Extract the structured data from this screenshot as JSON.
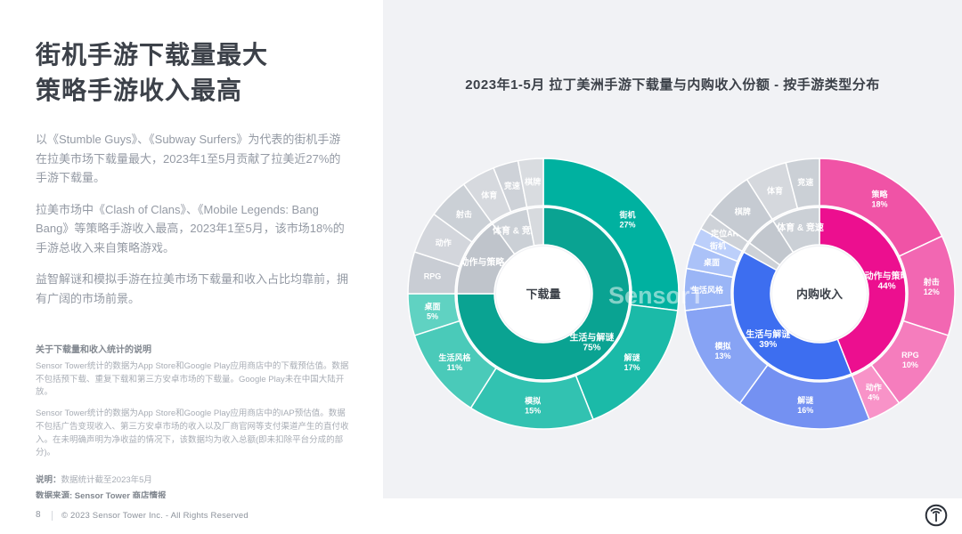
{
  "left_panel": {
    "title_line1": "街机手游下载量最大",
    "title_line2": "策略手游收入最高",
    "paragraphs": [
      "以《Stumble Guys》、《Subway Surfers》为代表的街机手游在拉美市场下载量最大，2023年1至5月贡献了拉美近27%的手游下载量。",
      "拉美市场中《Clash of Clans》、《Mobile Legends: Bang Bang》等策略手游收入最高，2023年1至5月，该市场18%的手游总收入来自策略游戏。",
      "益智解谜和模拟手游在拉美市场下载量和收入占比均靠前，拥有广阔的市场前景。"
    ],
    "notes_heading": "关于下载量和收入统计的说明",
    "notes": [
      "Sensor Tower统计的数据为App Store和Google Play应用商店中的下载预估值。数据不包括预下载、重复下载和第三方安卓市场的下载量。Google Play未在中国大陆开放。",
      "Sensor Tower统计的数据为App Store和Google Play应用商店中的IAP预估值。数据不包括广告变现收入、第三方安卓市场的收入以及厂商官网等支付渠道产生的直付收入。在未明确声明为净收益的情况下，该数据均为收入总额(即未扣除平台分成的部分)。"
    ],
    "note_label": "说明：",
    "note_value": "数据统计截至2023年5月",
    "source_label": "数据来源: Sensor Tower 商店情报"
  },
  "chart_panel": {
    "title": "2023年1-5月 拉丁美洲手游下载量与内购收入份额 - 按手游类型分布",
    "watermark": "SensorTower"
  },
  "footer": {
    "page_number": "8",
    "copyright": "© 2023 Sensor Tower Inc. - All Rights Reserved"
  },
  "chart_data": [
    {
      "type": "pie",
      "variant": "two-level-sunburst-donut",
      "name": "拉丁美洲手游下载量份额",
      "center_label": "下载量",
      "units": "% of downloads",
      "inner_ring": [
        {
          "label": "生活与解谜",
          "pct": "75%",
          "value": 75,
          "color": "#0aa392"
        },
        {
          "label": "动作与策略",
          "pct": "",
          "value": 15,
          "color": "#bfc4cb"
        },
        {
          "label": "体育 & 竞速",
          "pct": "",
          "value": 7,
          "color": "#cbd0d6"
        },
        {
          "label": "棋牌",
          "pct": "",
          "value": 3,
          "color": "#d7dade",
          "show_label": false
        }
      ],
      "outer_ring": [
        {
          "label": "街机",
          "pct": "27%",
          "value": 27,
          "color": "#00b1a0"
        },
        {
          "label": "解谜",
          "pct": "17%",
          "value": 17,
          "color": "#1bbaa8"
        },
        {
          "label": "模拟",
          "pct": "15%",
          "value": 15,
          "color": "#32c2b1"
        },
        {
          "label": "生活风格",
          "pct": "11%",
          "value": 11,
          "color": "#4acab9"
        },
        {
          "label": "桌面",
          "pct": "5%",
          "value": 5,
          "color": "#60d2c2"
        },
        {
          "label": "RPG",
          "pct": "",
          "value": 5,
          "color": "#c9cdd4"
        },
        {
          "label": "动作",
          "pct": "",
          "value": 5,
          "color": "#d3d6dc"
        },
        {
          "label": "射击",
          "pct": "",
          "value": 5,
          "color": "#cbd0d6"
        },
        {
          "label": "体育",
          "pct": "",
          "value": 4,
          "color": "#d6d9de"
        },
        {
          "label": "竞速",
          "pct": "",
          "value": 3,
          "color": "#ced2d8"
        },
        {
          "label": "棋牌",
          "pct": "",
          "value": 3,
          "color": "#d9dce0"
        }
      ]
    },
    {
      "type": "pie",
      "variant": "two-level-sunburst-donut",
      "name": "拉丁美洲手游内购收入份额",
      "center_label": "内购收入",
      "units": "% of IAP revenue",
      "inner_ring": [
        {
          "label": "动作与策略",
          "pct": "44%",
          "value": 44,
          "color": "#ec0f8f"
        },
        {
          "label": "生活与解谜",
          "pct": "39%",
          "value": 39,
          "color": "#3d6ef0"
        },
        {
          "label": "定位AR",
          "pct": "",
          "value": 2,
          "color": "#cdd1d7",
          "show_label": false
        },
        {
          "label": "棋牌",
          "pct": "",
          "value": 6,
          "color": "#c2c7ce",
          "show_label": false
        },
        {
          "label": "体育 & 竞速",
          "pct": "",
          "value": 9,
          "color": "#cbd0d6"
        }
      ],
      "outer_ring": [
        {
          "label": "策略",
          "pct": "18%",
          "value": 18,
          "color": "#f053a6"
        },
        {
          "label": "射击",
          "pct": "12%",
          "value": 12,
          "color": "#f267b2"
        },
        {
          "label": "RPG",
          "pct": "10%",
          "value": 10,
          "color": "#f57dbd"
        },
        {
          "label": "动作",
          "pct": "4%",
          "value": 4,
          "color": "#f893c8"
        },
        {
          "label": "解谜",
          "pct": "16%",
          "value": 16,
          "color": "#7491f2"
        },
        {
          "label": "模拟",
          "pct": "13%",
          "value": 13,
          "color": "#87a3f4"
        },
        {
          "label": "生活风格",
          "pct": "",
          "value": 5,
          "color": "#9ab5f6"
        },
        {
          "label": "桌面",
          "pct": "",
          "value": 3,
          "color": "#abc2f8"
        },
        {
          "label": "街机",
          "pct": "",
          "value": 2,
          "color": "#bccffa"
        },
        {
          "label": "定位AR",
          "pct": "",
          "value": 2,
          "color": "#ced2d8"
        },
        {
          "label": "棋牌",
          "pct": "",
          "value": 6,
          "color": "#c6cbd2"
        },
        {
          "label": "体育",
          "pct": "",
          "value": 5,
          "color": "#d5d8dd"
        },
        {
          "label": "竞速",
          "pct": "",
          "value": 4,
          "color": "#cbd0d6"
        }
      ]
    }
  ]
}
